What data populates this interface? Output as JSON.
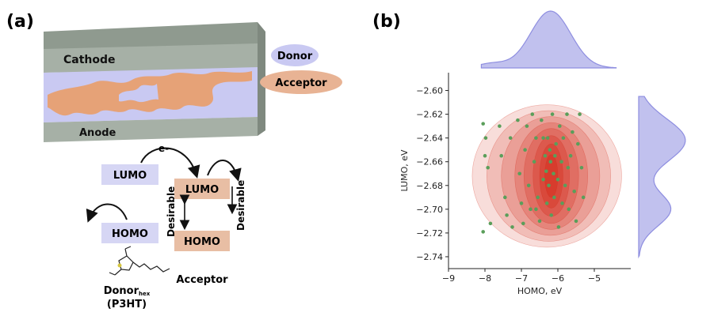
{
  "panel_a": {
    "label": "(a)",
    "cathode": "Cathode",
    "anode": "Anode",
    "donor_legend": "Donor",
    "acceptor_legend": "Acceptor",
    "electron": "e-",
    "lumo_donor": "LUMO",
    "homo_donor": "HOMO",
    "lumo_acceptor": "LUMO",
    "homo_acceptor": "HOMO",
    "desirable_left": "Desirable",
    "desirable_right": "Desirable",
    "donor_caption_main": "Donor",
    "donor_caption_sub": "hex",
    "donor_caption_p3ht": "(P3HT)",
    "acceptor_caption": "Acceptor",
    "colors": {
      "donor": "#c9c9f2",
      "acceptor": "#e8b394",
      "electrode": "#a6b0a6"
    }
  },
  "panel_b": {
    "label": "(b)"
  },
  "chart_data": {
    "type": "scatter",
    "title": "",
    "xlabel": "HOMO, eV",
    "ylabel": "LUMO, eV",
    "xlim": [
      -9,
      -4
    ],
    "ylim": [
      -2.75,
      -2.585
    ],
    "xticks": [
      -9,
      -8,
      -7,
      -6,
      -5
    ],
    "yticks": [
      -2.6,
      -2.62,
      -2.64,
      -2.66,
      -2.68,
      -2.7,
      -2.72,
      -2.74
    ],
    "xtick_labels": [
      "−9",
      "−8",
      "−7",
      "−6",
      "−5"
    ],
    "ytick_labels": [
      "−2.60",
      "−2.62",
      "−2.64",
      "−2.66",
      "−2.68",
      "−2.70",
      "−2.72",
      "−2.74"
    ],
    "grid": false,
    "point_color": "#5a9e5a",
    "density_color": "#d42a1a",
    "marginal_color": "#8e8ee0",
    "kde_center": {
      "x": -6.2,
      "y": -2.672
    },
    "points": [
      [
        -8.05,
        -2.628
      ],
      [
        -7.98,
        -2.64
      ],
      [
        -8.0,
        -2.655
      ],
      [
        -7.92,
        -2.665
      ],
      [
        -8.05,
        -2.719
      ],
      [
        -7.85,
        -2.712
      ],
      [
        -7.6,
        -2.63
      ],
      [
        -7.55,
        -2.655
      ],
      [
        -7.45,
        -2.69
      ],
      [
        -7.4,
        -2.705
      ],
      [
        -7.3,
        -2.64
      ],
      [
        -7.25,
        -2.715
      ],
      [
        -7.1,
        -2.625
      ],
      [
        -7.05,
        -2.67
      ],
      [
        -7.0,
        -2.695
      ],
      [
        -6.95,
        -2.712
      ],
      [
        -6.9,
        -2.65
      ],
      [
        -6.85,
        -2.63
      ],
      [
        -6.8,
        -2.68
      ],
      [
        -6.75,
        -2.7
      ],
      [
        -6.7,
        -2.62
      ],
      [
        -6.65,
        -2.66
      ],
      [
        -6.6,
        -2.64
      ],
      [
        -6.55,
        -2.69
      ],
      [
        -6.5,
        -2.71
      ],
      [
        -6.45,
        -2.625
      ],
      [
        -6.4,
        -2.675
      ],
      [
        -6.35,
        -2.655
      ],
      [
        -6.3,
        -2.695
      ],
      [
        -6.28,
        -2.64
      ],
      [
        -6.25,
        -2.68
      ],
      [
        -6.2,
        -2.66
      ],
      [
        -6.18,
        -2.705
      ],
      [
        -6.15,
        -2.62
      ],
      [
        -6.12,
        -2.67
      ],
      [
        -6.1,
        -2.69
      ],
      [
        -6.05,
        -2.645
      ],
      [
        -6.0,
        -2.675
      ],
      [
        -5.98,
        -2.715
      ],
      [
        -5.95,
        -2.63
      ],
      [
        -5.9,
        -2.66
      ],
      [
        -5.88,
        -2.695
      ],
      [
        -5.85,
        -2.64
      ],
      [
        -5.8,
        -2.68
      ],
      [
        -5.75,
        -2.62
      ],
      [
        -5.7,
        -2.7
      ],
      [
        -5.65,
        -2.655
      ],
      [
        -5.6,
        -2.635
      ],
      [
        -5.55,
        -2.685
      ],
      [
        -5.5,
        -2.71
      ],
      [
        -5.45,
        -2.645
      ],
      [
        -5.4,
        -2.62
      ],
      [
        -5.35,
        -2.665
      ],
      [
        -5.3,
        -2.69
      ],
      [
        -6.22,
        -2.65
      ],
      [
        -6.32,
        -2.668
      ],
      [
        -6.08,
        -2.655
      ],
      [
        -6.4,
        -2.64
      ],
      [
        -6.6,
        -2.7
      ],
      [
        -5.72,
        -2.665
      ]
    ]
  }
}
